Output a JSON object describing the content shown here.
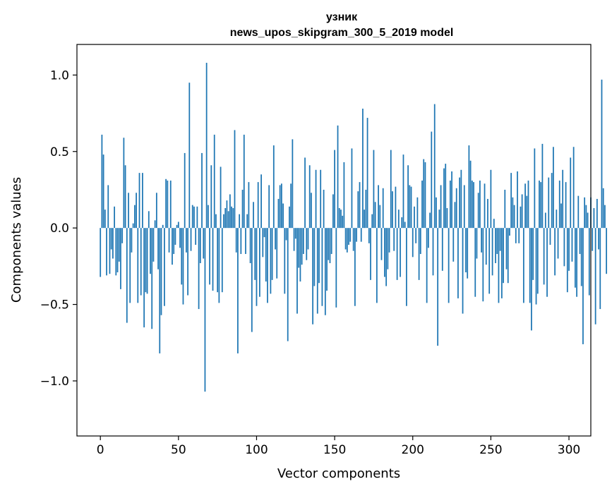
{
  "chart_data": {
    "type": "bar",
    "title": "узник",
    "subtitle": "news_upos_skipgram_300_5_2019 model",
    "xlabel": "Vector components",
    "ylabel": "Components values",
    "xlim": [
      -15,
      314
    ],
    "ylim": [
      -1.36,
      1.2
    ],
    "xticks": [
      0,
      50,
      100,
      150,
      200,
      250,
      300
    ],
    "yticks": [
      -1.0,
      -0.5,
      0.0,
      0.5,
      1.0
    ],
    "ytick_labels": [
      "−1.0",
      "−0.5",
      "0.0",
      "0.5",
      "1.0"
    ],
    "bar_color": "#1f77b4",
    "grid": false,
    "values": [
      -0.32,
      0.61,
      0.48,
      0.12,
      -0.31,
      0.28,
      -0.3,
      -0.14,
      -0.2,
      0.14,
      -0.31,
      -0.29,
      -0.22,
      -0.4,
      -0.1,
      0.59,
      0.41,
      -0.62,
      0.23,
      -0.49,
      -0.16,
      0.03,
      0.15,
      0.23,
      -0.49,
      0.36,
      -0.44,
      0.36,
      -0.65,
      -0.42,
      -0.43,
      0.11,
      -0.3,
      -0.66,
      -0.22,
      0.05,
      0.23,
      -0.27,
      -0.82,
      -0.57,
      0.02,
      -0.51,
      0.32,
      0.31,
      -0.16,
      0.31,
      -0.24,
      -0.17,
      -0.11,
      0.02,
      0.04,
      -0.13,
      -0.37,
      -0.5,
      0.49,
      -0.16,
      -0.44,
      0.95,
      -0.15,
      0.15,
      0.14,
      -0.11,
      0.14,
      -0.53,
      -0.23,
      0.49,
      -0.2,
      -1.07,
      1.08,
      0.15,
      -0.37,
      0.41,
      -0.41,
      0.61,
      0.09,
      -0.42,
      -0.49,
      0.4,
      -0.42,
      0.09,
      0.13,
      0.18,
      0.11,
      0.22,
      0.14,
      0.13,
      0.64,
      -0.16,
      -0.82,
      0.09,
      -0.17,
      0.25,
      0.61,
      -0.17,
      0.09,
      0.3,
      -0.23,
      -0.68,
      0.17,
      -0.34,
      -0.51,
      0.3,
      -0.45,
      0.35,
      -0.19,
      -0.06,
      -0.35,
      -0.49,
      0.28,
      -0.43,
      -0.34,
      0.54,
      -0.14,
      -0.33,
      0.19,
      0.28,
      0.29,
      0.16,
      -0.43,
      -0.08,
      -0.74,
      0.14,
      0.29,
      0.58,
      -0.15,
      -0.07,
      -0.56,
      -0.26,
      -0.35,
      -0.24,
      -0.17,
      0.46,
      -0.21,
      -0.14,
      0.41,
      0.23,
      -0.63,
      -0.38,
      0.38,
      -0.56,
      -0.36,
      0.38,
      -0.51,
      0.25,
      -0.57,
      -0.41,
      -0.21,
      -0.23,
      -0.17,
      0.22,
      0.51,
      -0.52,
      0.67,
      0.13,
      0.12,
      0.08,
      0.43,
      -0.14,
      -0.16,
      -0.11,
      -0.09,
      0.52,
      -0.15,
      -0.51,
      -0.09,
      0.24,
      0.3,
      -0.09,
      0.78,
      0.12,
      0.25,
      0.72,
      -0.1,
      -0.34,
      0.09,
      0.51,
      0.17,
      -0.49,
      0.28,
      0.15,
      -0.21,
      0.26,
      -0.32,
      -0.38,
      -0.27,
      -0.16,
      0.51,
      0.24,
      -0.15,
      0.27,
      -0.34,
      0.12,
      -0.32,
      0.07,
      0.48,
      0.04,
      -0.51,
      0.41,
      0.28,
      0.27,
      -0.19,
      0.14,
      -0.1,
      0.2,
      -0.34,
      -0.17,
      0.31,
      0.45,
      0.43,
      -0.49,
      -0.13,
      0.1,
      0.63,
      -0.31,
      0.81,
      0.2,
      -0.77,
      0.12,
      0.28,
      -0.28,
      0.39,
      0.42,
      0.13,
      -0.49,
      0.31,
      0.37,
      -0.22,
      0.17,
      0.26,
      -0.46,
      0.33,
      0.38,
      -0.56,
      0.28,
      -0.29,
      -0.33,
      0.54,
      0.44,
      0.31,
      0.3,
      -0.45,
      -0.2,
      0.23,
      0.31,
      -0.16,
      -0.48,
      0.29,
      -0.24,
      0.19,
      -0.43,
      0.38,
      -0.31,
      0.06,
      -0.23,
      -0.17,
      -0.49,
      -0.15,
      -0.46,
      -0.36,
      0.25,
      -0.27,
      -0.36,
      -0.05,
      0.36,
      0.2,
      0.15,
      -0.1,
      0.37,
      -0.1,
      0.14,
      0.22,
      -0.49,
      0.29,
      0.21,
      0.31,
      -0.49,
      -0.67,
      -0.34,
      0.52,
      -0.5,
      -0.43,
      0.31,
      0.3,
      0.55,
      -0.37,
      0.1,
      -0.45,
      0.33,
      -0.11,
      0.36,
      0.53,
      -0.31,
      0.12,
      -0.2,
      0.31,
      0.16,
      0.38,
      -0.25,
      0.3,
      -0.42,
      -0.28,
      0.46,
      -0.22,
      0.53,
      -0.39,
      -0.45,
      0.21,
      -0.17,
      -0.38,
      -0.76,
      0.2,
      0.15,
      0.1,
      -0.44,
      0.2,
      -0.15,
      0.13,
      -0.63,
      0.19,
      -0.14,
      -0.53,
      0.97,
      0.26,
      0.15,
      -0.3
    ]
  }
}
